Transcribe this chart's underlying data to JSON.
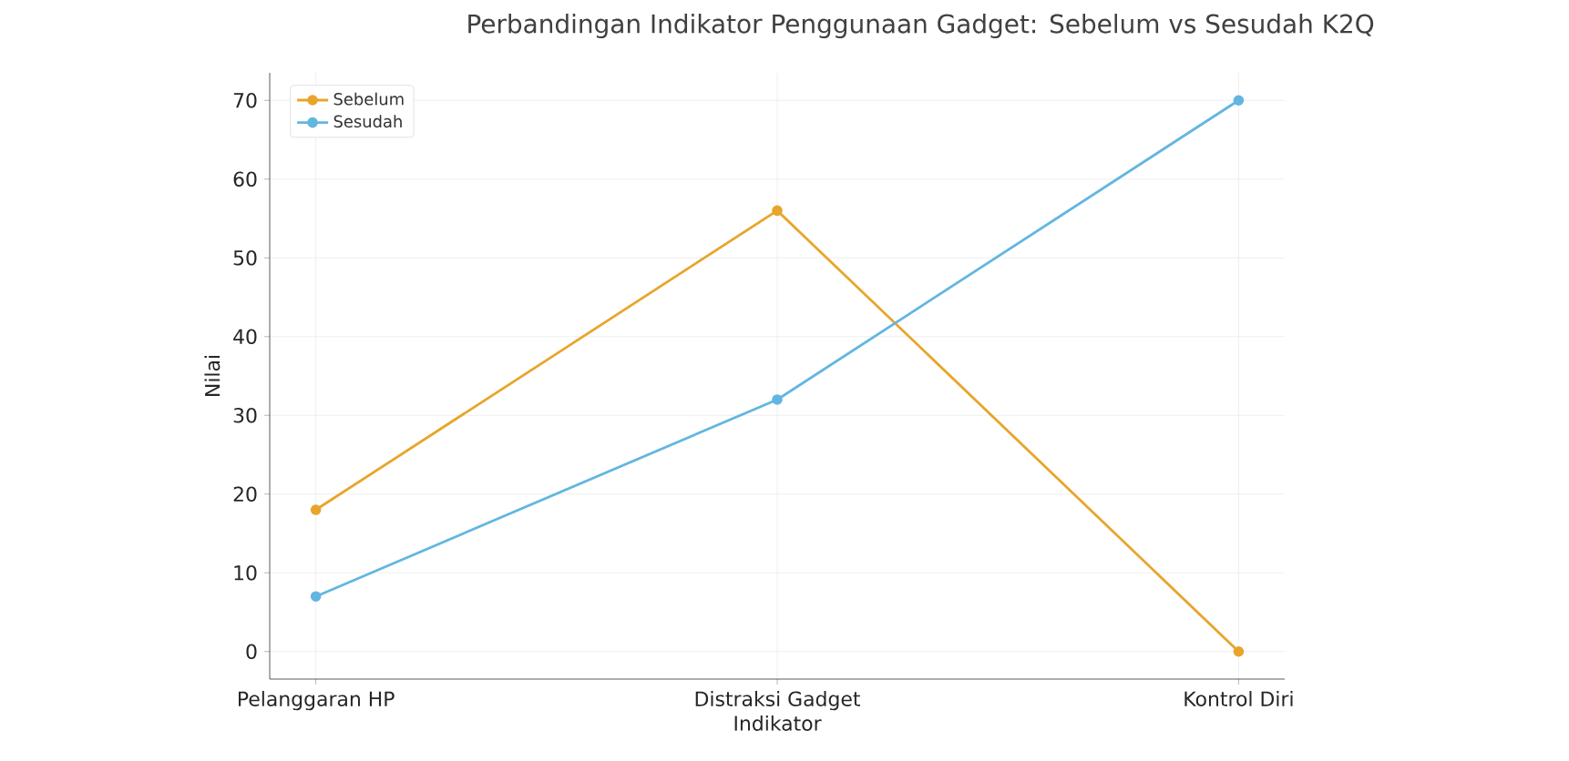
{
  "chart_data": {
    "type": "line",
    "title": "Perbandingan Indikator Penggunaan Gadget: Sebelum vs Sesudah K2Q",
    "xlabel": "Indikator",
    "ylabel": "Nilai",
    "categories": [
      "Pelanggaran HP",
      "Distraksi Gadget",
      "Kontrol Diri"
    ],
    "series": [
      {
        "name": "Sebelum",
        "color": "#e8a52a",
        "values": [
          18,
          56,
          0
        ]
      },
      {
        "name": "Sesudah",
        "color": "#62b6e0",
        "values": [
          7,
          32,
          70
        ]
      }
    ],
    "ylim": [
      -3.5,
      73.5
    ],
    "yticks": [
      0,
      10,
      20,
      30,
      40,
      50,
      60,
      70
    ],
    "grid": true,
    "legend": "top left",
    "marker": "circle",
    "line_style": "solid"
  }
}
